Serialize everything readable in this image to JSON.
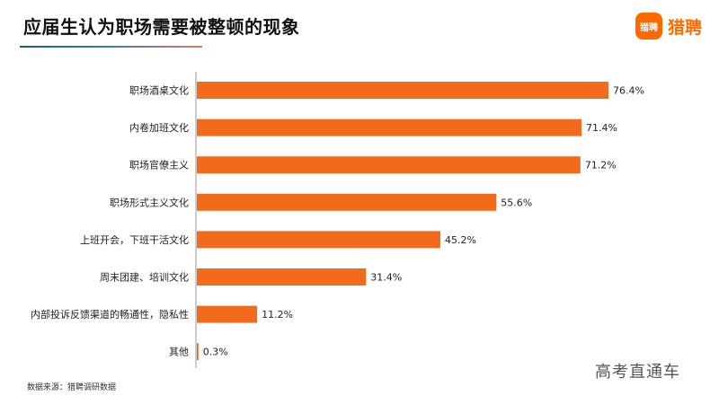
{
  "title": "应届生认为职场需要被整顿的现象",
  "brand": {
    "mark": "猎聘",
    "name": "猎聘"
  },
  "source": "数据来源：猎聘调研数据",
  "watermark": "高考直通车",
  "colors": {
    "bar": "#f26b1d",
    "axis": "#9a9a9a",
    "brand": "#ff6a00"
  },
  "chart_data": {
    "type": "bar",
    "orientation": "horizontal",
    "categories": [
      "职场酒桌文化",
      "内卷加班文化",
      "职场官僚主义",
      "职场形式主义文化",
      "上班开会，下班干活文化",
      "周末团建、培训文化",
      "内部投诉反馈渠道的畅通性，隐私性",
      "其他"
    ],
    "values": [
      76.4,
      71.4,
      71.2,
      55.6,
      45.2,
      31.4,
      11.2,
      0.3
    ],
    "labels": [
      "76.4%",
      "71.4%",
      "71.2%",
      "55.6%",
      "45.2%",
      "31.4%",
      "11.2%",
      "0.3%"
    ],
    "xlim": [
      0,
      80
    ],
    "title": "应届生认为职场需要被整顿的现象"
  }
}
